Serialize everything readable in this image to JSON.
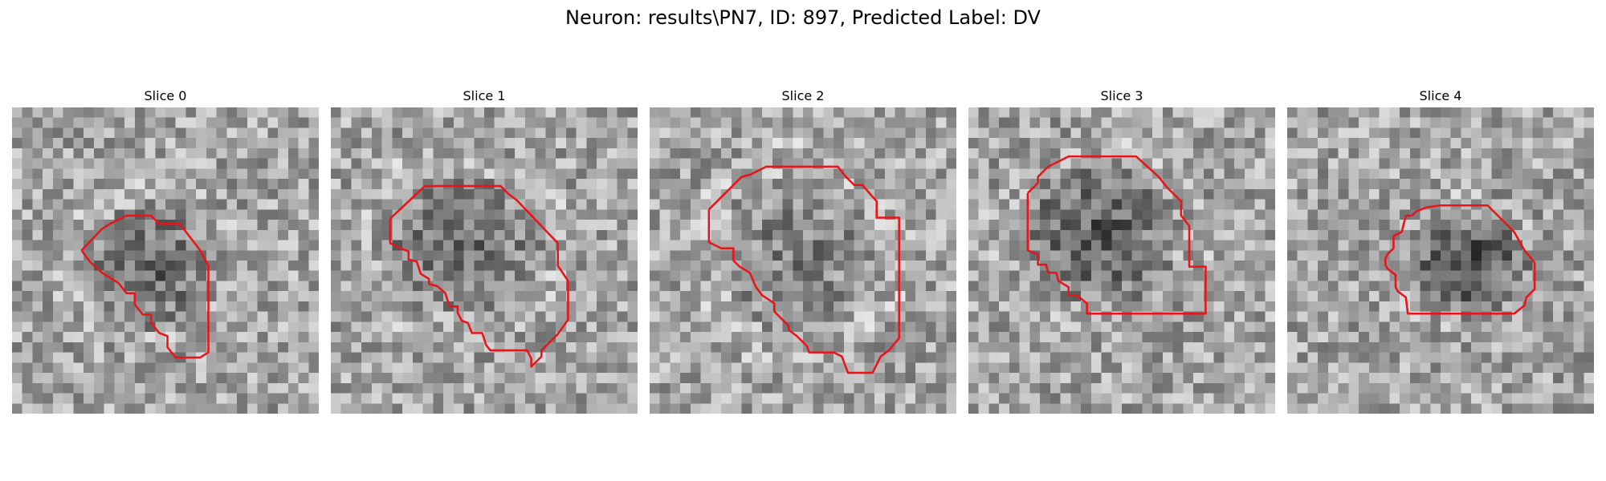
{
  "figure": {
    "title": "Neuron: results\\PN7, ID: 897, Predicted Label: DV"
  },
  "contour_color": "#e8141a",
  "panels": [
    {
      "title": "Slice 0"
    },
    {
      "title": "Slice 1"
    },
    {
      "title": "Slice 2"
    },
    {
      "title": "Slice 3"
    },
    {
      "title": "Slice 4"
    }
  ]
}
